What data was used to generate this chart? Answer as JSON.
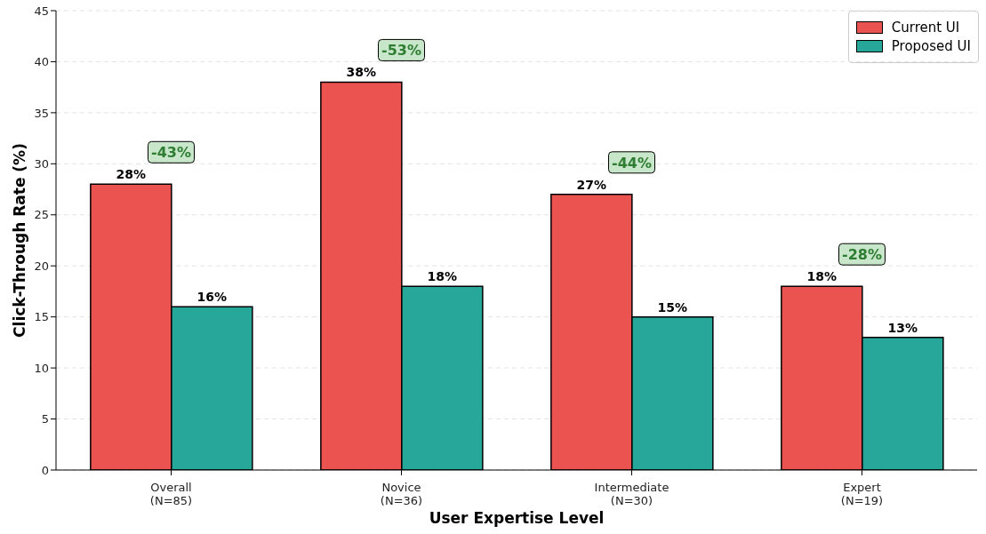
{
  "chart_data": {
    "type": "bar",
    "xlabel": "User Expertise Level",
    "ylabel": "Click-Through Rate (%)",
    "categories": [
      "Overall\n(N=85)",
      "Novice\n(N=36)",
      "Intermediate\n(N=30)",
      "Expert\n(N=19)"
    ],
    "series": [
      {
        "name": "Current UI",
        "color": "#eb5350",
        "values": [
          28,
          38,
          27,
          18
        ],
        "value_labels": [
          "28%",
          "38%",
          "27%",
          "18%"
        ]
      },
      {
        "name": "Proposed UI",
        "color": "#27a69a",
        "values": [
          16,
          18,
          15,
          13
        ],
        "value_labels": [
          "16%",
          "18%",
          "15%",
          "13%"
        ]
      }
    ],
    "annotations": [
      "-43%",
      "-53%",
      "-44%",
      "-28%"
    ],
    "ylim": [
      0,
      45
    ],
    "yticks": [
      0,
      5,
      10,
      15,
      20,
      25,
      30,
      35,
      40,
      45
    ],
    "grid": "y",
    "legend": "top right"
  }
}
